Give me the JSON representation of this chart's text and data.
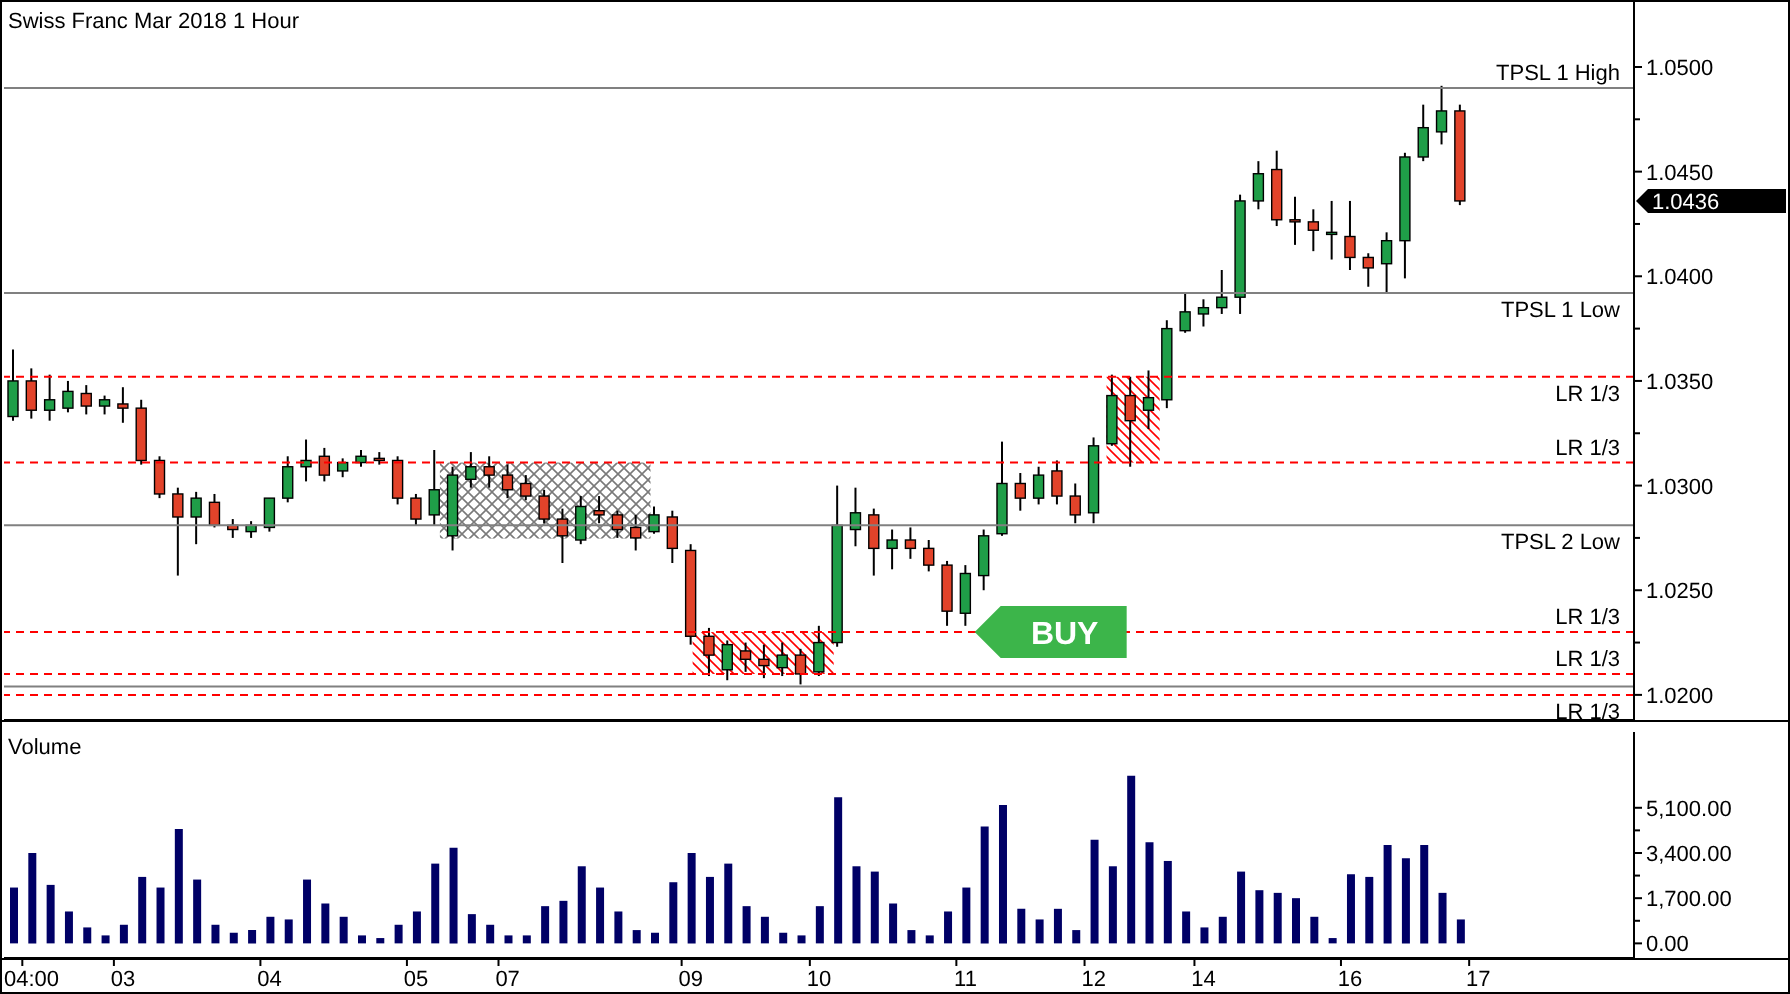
{
  "chart_data": [
    {
      "type": "candlestick",
      "title": "Swiss Franc Mar 2018 1 Hour",
      "categories": [
        null,
        null,
        null,
        null,
        null,
        null,
        null,
        null,
        null,
        null,
        null,
        null,
        null,
        null,
        null,
        null,
        null,
        null,
        null,
        null,
        null,
        null,
        null,
        null,
        null,
        null,
        null,
        null,
        null,
        null,
        null,
        null,
        null,
        null,
        null,
        null,
        null,
        null,
        null,
        null,
        null,
        null,
        null,
        null,
        null,
        null,
        null,
        null,
        null,
        null,
        null,
        null,
        null,
        null,
        null,
        null,
        null,
        null,
        null,
        null,
        null,
        null,
        null,
        null,
        null,
        null,
        null,
        null,
        null,
        null,
        null,
        null,
        null,
        null,
        null,
        null,
        null,
        null,
        null,
        null,
        null,
        null,
        null,
        null,
        null,
        null,
        null,
        null,
        null
      ],
      "ohlc": [
        [
          1.0333,
          1.0365,
          1.0331,
          1.035
        ],
        [
          1.035,
          1.0356,
          1.0332,
          1.0336
        ],
        [
          1.0336,
          1.0353,
          1.0331,
          1.0341
        ],
        [
          1.0337,
          1.035,
          1.0335,
          1.0345
        ],
        [
          1.0344,
          1.0348,
          1.0334,
          1.0338
        ],
        [
          1.0338,
          1.0343,
          1.0334,
          1.0341
        ],
        [
          1.0339,
          1.0347,
          1.033,
          1.0337
        ],
        [
          1.0337,
          1.0341,
          1.031,
          1.0312
        ],
        [
          1.0312,
          1.0314,
          1.0294,
          1.0296
        ],
        [
          1.0296,
          1.0299,
          1.0257,
          1.0285
        ],
        [
          1.0285,
          1.0297,
          1.0272,
          1.0294
        ],
        [
          1.0292,
          1.0296,
          1.028,
          1.0281
        ],
        [
          1.0281,
          1.0284,
          1.0275,
          1.0279
        ],
        [
          1.0278,
          1.0283,
          1.0275,
          1.0281
        ],
        [
          1.028,
          1.0294,
          1.0278,
          1.0294
        ],
        [
          1.0294,
          1.0314,
          1.0292,
          1.0309
        ],
        [
          1.0309,
          1.0322,
          1.0302,
          1.0312
        ],
        [
          1.0314,
          1.0318,
          1.0302,
          1.0305
        ],
        [
          1.0307,
          1.0313,
          1.0304,
          1.0311
        ],
        [
          1.0311,
          1.0317,
          1.0309,
          1.0314
        ],
        [
          1.0313,
          1.0316,
          1.031,
          1.0312
        ],
        [
          1.0312,
          1.0314,
          1.0291,
          1.0294
        ],
        [
          1.0294,
          1.0296,
          1.0281,
          1.0284
        ],
        [
          1.0286,
          1.0317,
          1.0281,
          1.0298
        ],
        [
          1.0276,
          1.0309,
          1.0269,
          1.0305
        ],
        [
          1.0303,
          1.0316,
          1.0299,
          1.0309
        ],
        [
          1.0309,
          1.0314,
          1.0299,
          1.0305
        ],
        [
          1.0305,
          1.031,
          1.0294,
          1.0298
        ],
        [
          1.0301,
          1.0305,
          1.0293,
          1.0295
        ],
        [
          1.0295,
          1.0298,
          1.0282,
          1.0284
        ],
        [
          1.0284,
          1.0289,
          1.0263,
          1.0276
        ],
        [
          1.0274,
          1.0295,
          1.0272,
          1.029
        ],
        [
          1.0288,
          1.0295,
          1.0282,
          1.0286
        ],
        [
          1.0286,
          1.0288,
          1.0275,
          1.0279
        ],
        [
          1.028,
          1.0286,
          1.0269,
          1.0275
        ],
        [
          1.0278,
          1.029,
          1.0277,
          1.0286
        ],
        [
          1.0285,
          1.0288,
          1.0263,
          1.027
        ],
        [
          1.0269,
          1.0272,
          1.0224,
          1.0228
        ],
        [
          1.0228,
          1.0232,
          1.0209,
          1.0219
        ],
        [
          1.0212,
          1.0226,
          1.0207,
          1.0224
        ],
        [
          1.0221,
          1.0225,
          1.0211,
          1.0217
        ],
        [
          1.0217,
          1.0224,
          1.0208,
          1.0214
        ],
        [
          1.0213,
          1.0225,
          1.0209,
          1.0219
        ],
        [
          1.0219,
          1.0222,
          1.0205,
          1.021
        ],
        [
          1.0211,
          1.0233,
          1.0209,
          1.0225
        ],
        [
          1.0225,
          1.03,
          1.0223,
          1.0281
        ],
        [
          1.0279,
          1.0299,
          1.0271,
          1.0287
        ],
        [
          1.0286,
          1.0289,
          1.0257,
          1.027
        ],
        [
          1.027,
          1.0279,
          1.026,
          1.0274
        ],
        [
          1.0274,
          1.028,
          1.0265,
          1.027
        ],
        [
          1.027,
          1.0274,
          1.0259,
          1.0262
        ],
        [
          1.0262,
          1.0264,
          1.0233,
          1.024
        ],
        [
          1.0239,
          1.0262,
          1.0233,
          1.0258
        ],
        [
          1.0257,
          1.0279,
          1.025,
          1.0276
        ],
        [
          1.0277,
          1.0321,
          1.0276,
          1.0301
        ],
        [
          1.0301,
          1.0306,
          1.0288,
          1.0294
        ],
        [
          1.0294,
          1.0309,
          1.0291,
          1.0305
        ],
        [
          1.0307,
          1.0312,
          1.0291,
          1.0295
        ],
        [
          1.0295,
          1.0301,
          1.0282,
          1.0286
        ],
        [
          1.0287,
          1.0323,
          1.0282,
          1.0319
        ],
        [
          1.032,
          1.0353,
          1.0319,
          1.0343
        ],
        [
          1.0343,
          1.0352,
          1.0309,
          1.0331
        ],
        [
          1.0336,
          1.0355,
          1.0327,
          1.0342
        ],
        [
          1.0341,
          1.0379,
          1.0337,
          1.0375
        ],
        [
          1.0374,
          1.0392,
          1.0373,
          1.0383
        ],
        [
          1.0382,
          1.0389,
          1.0376,
          1.0385
        ],
        [
          1.0385,
          1.0403,
          1.0382,
          1.039
        ],
        [
          1.039,
          1.0439,
          1.0382,
          1.0436
        ],
        [
          1.0436,
          1.0455,
          1.0432,
          1.0449
        ],
        [
          1.0451,
          1.046,
          1.0424,
          1.0427
        ],
        [
          1.0427,
          1.0438,
          1.0415,
          1.0426
        ],
        [
          1.0426,
          1.0432,
          1.0412,
          1.0422
        ],
        [
          1.042,
          1.0436,
          1.0408,
          1.0421
        ],
        [
          1.0419,
          1.0436,
          1.0403,
          1.0409
        ],
        [
          1.0409,
          1.0411,
          1.0395,
          1.0404
        ],
        [
          1.0406,
          1.0421,
          1.0392,
          1.0417
        ],
        [
          1.0417,
          1.0459,
          1.0399,
          1.0457
        ],
        [
          1.0457,
          1.0482,
          1.0455,
          1.0471
        ],
        [
          1.0469,
          1.0491,
          1.0463,
          1.0479
        ],
        [
          1.0479,
          1.0482,
          1.0434,
          1.0436
        ],
        null,
        null,
        null,
        null,
        null,
        null,
        null,
        null,
        null
      ],
      "colors": [
        "#1f9e48",
        "#e2432a",
        "#1f9e48",
        "#1f9e48",
        "#e2432a",
        "#1f9e48",
        "#e2432a",
        "#e2432a",
        "#e2432a",
        "#e2432a",
        "#1f9e48",
        "#e2432a",
        "#e2432a",
        "#1f9e48",
        "#1f9e48",
        "#1f9e48",
        "#1f9e48",
        "#e2432a",
        "#1f9e48",
        "#1f9e48",
        "#e2432a",
        "#e2432a",
        "#e2432a",
        "#1f9e48",
        "#1f9e48",
        "#1f9e48",
        "#e2432a",
        "#e2432a",
        "#e2432a",
        "#e2432a",
        "#e2432a",
        "#1f9e48",
        "#e2432a",
        "#e2432a",
        "#e2432a",
        "#1f9e48",
        "#e2432a",
        "#e2432a",
        "#e2432a",
        "#1f9e48",
        "#e2432a",
        "#e2432a",
        "#1f9e48",
        "#e2432a",
        "#1f9e48",
        "#1f9e48",
        "#1f9e48",
        "#e2432a",
        "#1f9e48",
        "#e2432a",
        "#e2432a",
        "#e2432a",
        "#1f9e48",
        "#1f9e48",
        "#1f9e48",
        "#e2432a",
        "#1f9e48",
        "#e2432a",
        "#e2432a",
        "#1f9e48",
        "#1f9e48",
        "#e2432a",
        "#1f9e48",
        "#1f9e48",
        "#1f9e48",
        "#1f9e48",
        "#1f9e48",
        "#1f9e48",
        "#1f9e48",
        "#e2432a",
        "#e2432a",
        "#e2432a",
        "#1f9e48",
        "#e2432a",
        "#e2432a",
        "#1f9e48",
        "#1f9e48",
        "#1f9e48",
        "#1f9e48",
        "#e2432a",
        null,
        null,
        null,
        null,
        null,
        null,
        null,
        null,
        null
      ],
      "ylim": [
        1.0188,
        1.0532
      ],
      "yticks": [
        {
          "value": 1.02,
          "label": "1.0200"
        },
        {
          "value": 1.0225,
          "label": null
        },
        {
          "value": 1.025,
          "label": "1.0250"
        },
        {
          "value": 1.0275,
          "label": null
        },
        {
          "value": 1.03,
          "label": "1.0300"
        },
        {
          "value": 1.0325,
          "label": null
        },
        {
          "value": 1.035,
          "label": "1.0350"
        },
        {
          "value": 1.0375,
          "label": null
        },
        {
          "value": 1.04,
          "label": "1.0400"
        },
        {
          "value": 1.0425,
          "label": null
        },
        {
          "value": 1.045,
          "label": "1.0450"
        },
        {
          "value": 1.0475,
          "label": null
        },
        {
          "value": 1.05,
          "label": "1.0500"
        }
      ],
      "ref_lines": [
        {
          "axis": "y",
          "value": 1.049,
          "label": "TPSL 1 High",
          "color": "#808080",
          "line_style": "solid"
        },
        {
          "axis": "y",
          "value": 1.0392,
          "label": "TPSL 1 Low",
          "color": "#808080",
          "line_style": "solid"
        },
        {
          "axis": "y",
          "value": 1.0352,
          "label": "LR 1/3",
          "color": "#ff0000",
          "line_style": "dashed"
        },
        {
          "axis": "y",
          "value": 1.0311,
          "label": "LR 1/3",
          "color": "#ff0000",
          "line_style": "dashed"
        },
        {
          "axis": "y",
          "value": 1.0281,
          "label": "TPSL 2 Low",
          "color": "#808080",
          "line_style": "solid"
        },
        {
          "axis": "y",
          "value": 1.023,
          "label": "LR 1/3",
          "color": "#ff0000",
          "line_style": "dashed"
        },
        {
          "axis": "y",
          "value": 1.021,
          "label": "LR 1/3",
          "color": "#ff0000",
          "line_style": "dashed"
        },
        {
          "axis": "y",
          "value": 1.0204,
          "color": "#808080",
          "line_style": "solid"
        },
        {
          "axis": "y",
          "value": 1.02,
          "label": "LR 1/3",
          "color": "#ff0000",
          "line_style": "dashed"
        }
      ],
      "annotations": [
        {
          "text": "BUY",
          "y": 1.023
        },
        "1.0436"
      ]
    },
    {
      "type": "bar",
      "title": "Volume",
      "categories": [
        null,
        "04:00",
        null,
        null,
        null,
        null,
        "03",
        null,
        null,
        null,
        null,
        null,
        null,
        null,
        "04",
        null,
        null,
        null,
        null,
        null,
        null,
        null,
        "05",
        null,
        null,
        null,
        null,
        "07",
        null,
        null,
        null,
        null,
        null,
        null,
        null,
        null,
        null,
        "09",
        null,
        null,
        null,
        null,
        null,
        null,
        "10",
        null,
        null,
        null,
        null,
        null,
        null,
        null,
        "11",
        null,
        null,
        null,
        null,
        null,
        null,
        "12",
        null,
        null,
        null,
        null,
        null,
        "14",
        null,
        null,
        null,
        null,
        null,
        null,
        null,
        "16",
        null,
        null,
        null,
        null,
        null,
        null,
        "17",
        null,
        null,
        null,
        null,
        null,
        null,
        null,
        null
      ],
      "values": [
        2100,
        3400,
        2200,
        1200,
        600,
        300,
        700,
        2500,
        2100,
        4300,
        2400,
        700,
        400,
        500,
        1000,
        900,
        2400,
        1500,
        1000,
        300,
        200,
        700,
        1200,
        3000,
        3600,
        1100,
        700,
        300,
        300,
        1400,
        1600,
        2900,
        2100,
        1200,
        500,
        400,
        2300,
        3400,
        2500,
        3000,
        1400,
        1000,
        400,
        300,
        1400,
        5500,
        2900,
        2700,
        1500,
        500,
        300,
        1200,
        2100,
        4400,
        5200,
        1300,
        900,
        1300,
        500,
        3900,
        2900,
        6300,
        3800,
        3100,
        1200,
        600,
        1000,
        2700,
        2000,
        1900,
        1700,
        1000,
        200,
        2600,
        2500,
        3700,
        3200,
        3700,
        1900,
        900,
        null,
        null,
        null,
        null,
        null,
        null,
        null,
        null,
        null
      ],
      "color": "#000066",
      "ylim": [
        -550,
        7950
      ],
      "yticks": [
        {
          "value": 0,
          "label": "0.00"
        },
        {
          "value": 850,
          "label": null
        },
        {
          "value": 1700,
          "label": "1,700.00"
        },
        {
          "value": 2550,
          "label": null
        },
        {
          "value": 3400,
          "label": "3,400.00"
        },
        {
          "value": 4250,
          "label": null
        },
        {
          "value": 5100,
          "label": "5,100.00"
        }
      ]
    }
  ]
}
